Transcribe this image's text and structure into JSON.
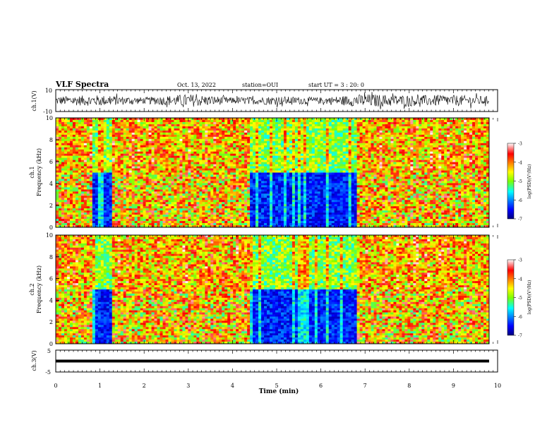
{
  "header": {
    "title": "VLF Spectra",
    "date": "Oct. 13, 2022",
    "station": "station=OUI",
    "start_ut": "start  UT =  3 : 20: 0"
  },
  "colors": {
    "jet": [
      "#00007f",
      "#0000ff",
      "#00ffff",
      "#7fff00",
      "#ffff00",
      "#ff7f00",
      "#ff0000",
      "#7f0000"
    ],
    "waveform": "#000000"
  },
  "chart_data": [
    {
      "type": "line",
      "panel": "ch1-waveform",
      "ylabel": "ch.1(V)",
      "ylim": [
        -10,
        10
      ],
      "yticks": [
        "10",
        "-10"
      ],
      "description_level": "waveform amplitude, bursty noise",
      "x": [
        0,
        1,
        2,
        3,
        4,
        5,
        6,
        7,
        8,
        9,
        9.8
      ],
      "amplitude_envelope": [
        4,
        5,
        3,
        6,
        3,
        4,
        3,
        6,
        5,
        5,
        4
      ]
    },
    {
      "type": "heatmap",
      "panel": "ch1-spectrogram",
      "ylabel": "Frequency (kHz)",
      "ylabel_prefix": "ch.1",
      "xlim": [
        0,
        10
      ],
      "ylim": [
        0,
        10
      ],
      "yticks": [
        "0",
        "2",
        "4",
        "6",
        "8",
        "10"
      ],
      "colorbar": {
        "label": "log(PSD)(V²/Hz)",
        "ticks": [
          "-3",
          "-4",
          "-5",
          "-6",
          "-7"
        ],
        "range": [
          -7,
          -3
        ]
      },
      "quiet_intervals_min": [
        [
          0.85,
          1.3
        ],
        [
          4.4,
          6.8
        ]
      ]
    },
    {
      "type": "heatmap",
      "panel": "ch2-spectrogram",
      "ylabel": "Frequency (kHz)",
      "ylabel_prefix": "ch.2",
      "xlim": [
        0,
        10
      ],
      "ylim": [
        0,
        10
      ],
      "yticks": [
        "0",
        "2",
        "4",
        "6",
        "8",
        "10"
      ],
      "colorbar": {
        "label": "log(PSD)(V²/Hz)",
        "ticks": [
          "-3",
          "-4",
          "-5",
          "-6",
          "-7"
        ],
        "range": [
          -7,
          -3
        ]
      },
      "quiet_intervals_min": [
        [
          0.8,
          1.3
        ],
        [
          4.4,
          6.8
        ]
      ]
    },
    {
      "type": "line",
      "panel": "ch3-trace",
      "ylabel": "ch.3(V)",
      "ylim": [
        -5,
        5
      ],
      "yticks": [
        "5",
        "-5"
      ],
      "x": [
        0,
        9.8
      ],
      "y": [
        0,
        0
      ]
    }
  ],
  "xaxis": {
    "label": "Time (min)",
    "ticks": [
      "0",
      "1",
      "2",
      "3",
      "4",
      "5",
      "6",
      "7",
      "8",
      "9",
      "10"
    ],
    "range": [
      0,
      10
    ]
  }
}
